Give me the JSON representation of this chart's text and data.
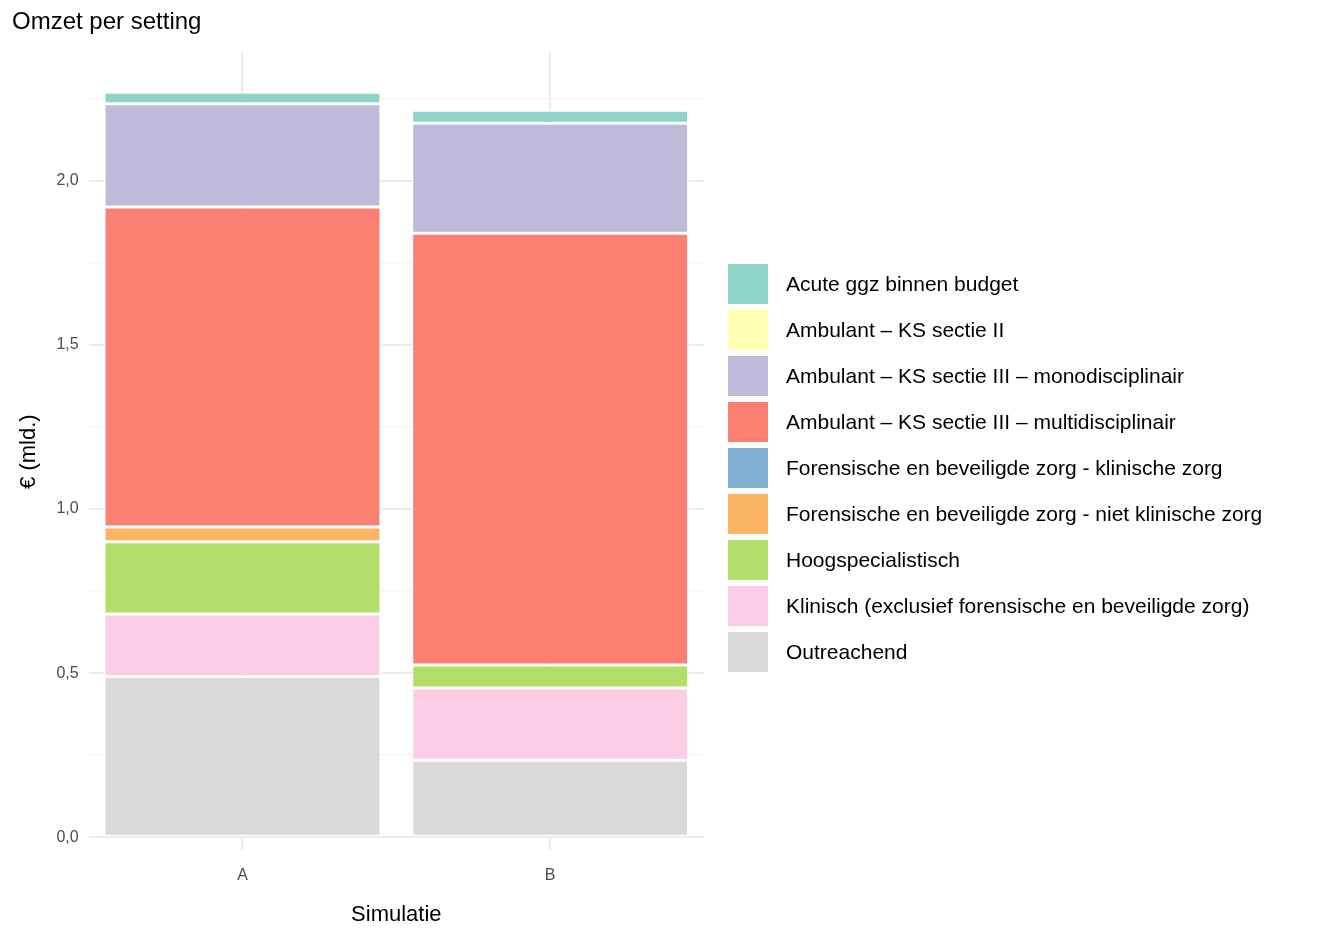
{
  "chart_data": {
    "type": "bar",
    "title": "Omzet per setting",
    "xlabel": "Simulatie",
    "ylabel": "€ (mld.)",
    "categories": [
      "A",
      "B"
    ],
    "stacked": true,
    "series": [
      {
        "name": "Outreachend",
        "color": "#d9d9d9",
        "values": [
          0.49,
          0.235
        ]
      },
      {
        "name": "Klinisch (exclusief forensische en beveiligde zorg)",
        "color": "#fccde5",
        "values": [
          0.19,
          0.22
        ]
      },
      {
        "name": "Hoogspecialistisch",
        "color": "#b3de69",
        "values": [
          0.22,
          0.07
        ]
      },
      {
        "name": "Forensische en beveiligde zorg - niet klinische zorg",
        "color": "#fdb462",
        "values": [
          0.045,
          0
        ]
      },
      {
        "name": "Forensische en beveiligde zorg - klinische zorg",
        "color": "#80b1d3",
        "values": [
          0,
          0
        ]
      },
      {
        "name": "Ambulant – KS sectie III – multidisciplinair",
        "color": "#fb8072",
        "values": [
          0.975,
          1.315
        ]
      },
      {
        "name": "Ambulant – KS sectie III – monodisciplinair",
        "color": "#bebada",
        "values": [
          0.315,
          0.335
        ]
      },
      {
        "name": "Ambulant – KS sectie II",
        "color": "#ffffb3",
        "values": [
          0,
          0
        ]
      },
      {
        "name": "Acute ggz binnen budget",
        "color": "#8dd3c7",
        "values": [
          0.035,
          0.04
        ]
      }
    ],
    "ylim": [
      -0.04,
      2.39
    ],
    "yticks": [
      {
        "value": 0,
        "label": "0,0"
      },
      {
        "value": 0.25,
        "label": null
      },
      {
        "value": 0.5,
        "label": "0,5"
      },
      {
        "value": 0.75,
        "label": null
      },
      {
        "value": 1,
        "label": "1,0"
      },
      {
        "value": 1.25,
        "label": null
      },
      {
        "value": 1.5,
        "label": "1,5"
      },
      {
        "value": 1.75,
        "label": null
      },
      {
        "value": 2,
        "label": "2,0"
      },
      {
        "value": 2.25,
        "label": null
      }
    ],
    "grid": true,
    "legend": "right"
  }
}
